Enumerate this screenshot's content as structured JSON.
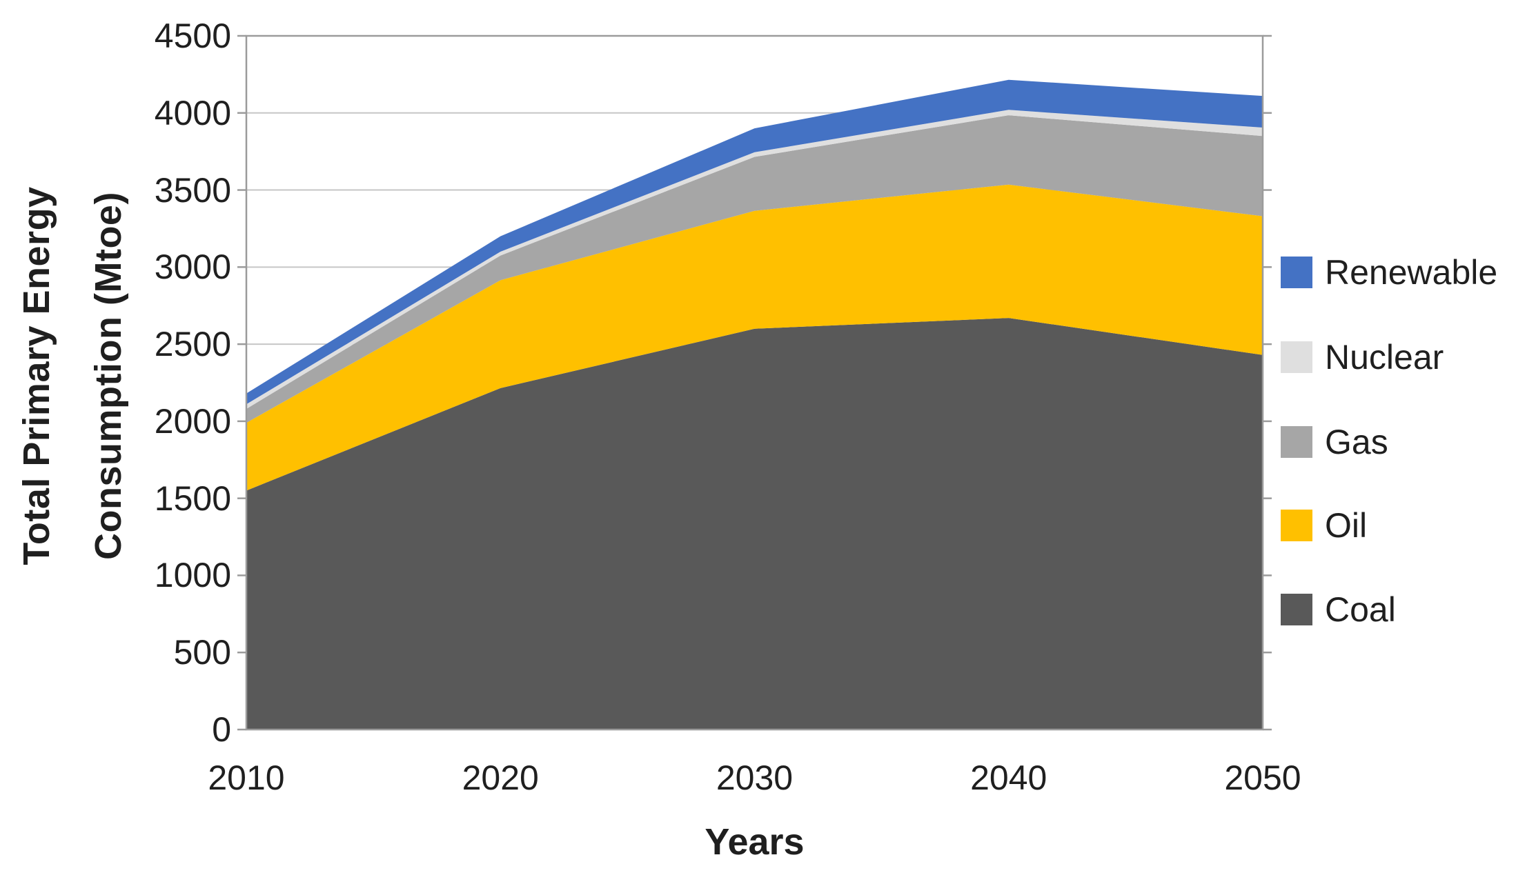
{
  "chart_data": {
    "type": "area",
    "stacked": true,
    "title": "",
    "xlabel": "Years",
    "ylabel": "Total Primary Energy Consumption (Mtoe)",
    "ylabel_lines": [
      "Total Primary Energy",
      "Consumption (Mtoe)"
    ],
    "categories": [
      "2010",
      "2020",
      "2030",
      "2040",
      "2050"
    ],
    "series": [
      {
        "name": "Coal",
        "color": "#595959",
        "values": [
          1550,
          2215,
          2600,
          2670,
          2430
        ]
      },
      {
        "name": "Oil",
        "color": "#FFC000",
        "values": [
          440,
          700,
          765,
          865,
          900
        ]
      },
      {
        "name": "Gas",
        "color": "#A6A6A6",
        "values": [
          90,
          160,
          350,
          450,
          520
        ]
      },
      {
        "name": "Nuclear",
        "color": "#DFDFDF",
        "values": [
          30,
          25,
          30,
          35,
          55
        ]
      },
      {
        "name": "Renewable",
        "color": "#4472C4",
        "values": [
          70,
          100,
          155,
          195,
          205
        ]
      }
    ],
    "stacked_totals": [
      2180,
      3200,
      3900,
      4215,
      4110
    ],
    "y_axis": {
      "min": 0,
      "max": 4500,
      "step": 500,
      "ticks": [
        "0",
        "500",
        "1000",
        "1500",
        "2000",
        "2500",
        "3000",
        "3500",
        "4000",
        "4500"
      ]
    },
    "x_axis": {
      "ticks": [
        "2010",
        "2020",
        "2030",
        "2040",
        "2050"
      ]
    },
    "legend": {
      "position": "right",
      "entries_top_to_bottom": [
        "Renewable",
        "Nuclear",
        "Gas",
        "Oil",
        "Coal"
      ]
    },
    "grid": "horizontal"
  },
  "styles": {
    "gridline_color": "#C6C6C6",
    "axis_line_color": "#9B9B9B",
    "text_color": "#1f1f1f",
    "background": "#ffffff"
  }
}
